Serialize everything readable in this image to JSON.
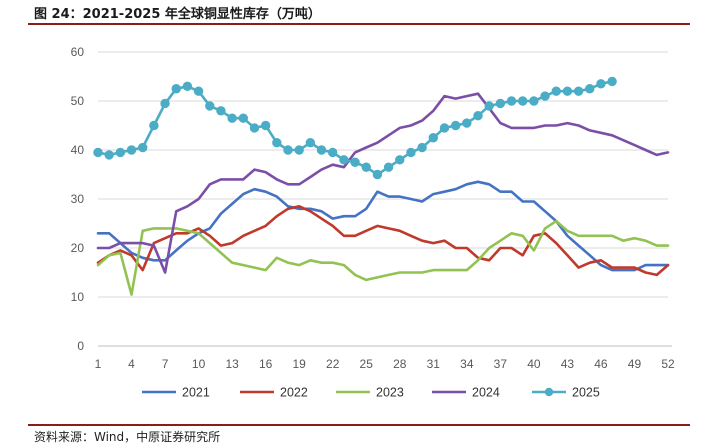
{
  "header": {
    "title": "图 24：2021-2025 年全球铜显性库存（万吨）"
  },
  "footer": {
    "source": "资料来源：Wind，中原证券研究所"
  },
  "chart_data": {
    "type": "line",
    "title": "图 24：2021-2025 年全球铜显性库存（万吨）",
    "xlabel": "",
    "ylabel": "",
    "xlim": [
      1,
      52
    ],
    "ylim": [
      0,
      60
    ],
    "yticks": [
      0,
      10,
      20,
      30,
      40,
      50,
      60
    ],
    "xticks": [
      1,
      4,
      7,
      10,
      13,
      16,
      19,
      22,
      25,
      28,
      31,
      34,
      37,
      40,
      43,
      46,
      49,
      52
    ],
    "grid": "horizontal",
    "legend": "bottom",
    "x": [
      1,
      2,
      3,
      4,
      5,
      6,
      7,
      8,
      9,
      10,
      11,
      12,
      13,
      14,
      15,
      16,
      17,
      18,
      19,
      20,
      21,
      22,
      23,
      24,
      25,
      26,
      27,
      28,
      29,
      30,
      31,
      32,
      33,
      34,
      35,
      36,
      37,
      38,
      39,
      40,
      41,
      42,
      43,
      44,
      45,
      46,
      47,
      48,
      49,
      50,
      51,
      52
    ],
    "series": [
      {
        "name": "2021",
        "color": "#4472C4",
        "marker": false,
        "values": [
          23,
          23,
          21,
          19,
          18,
          17.5,
          17.5,
          19.5,
          21.5,
          23,
          24,
          27,
          29,
          31,
          32,
          31.5,
          30.5,
          28.5,
          28,
          28,
          27.5,
          26,
          26.5,
          26.5,
          28,
          31.5,
          30.5,
          30.5,
          30,
          29.5,
          31,
          31.5,
          32,
          33,
          33.5,
          33,
          31.5,
          31.5,
          29.5,
          29.5,
          27.5,
          25.5,
          22.5,
          20.5,
          18.5,
          16.5,
          15.5,
          15.5,
          15.5,
          16.5,
          16.5,
          16.5
        ]
      },
      {
        "name": "2022",
        "color": "#C0392B",
        "marker": false,
        "values": [
          17,
          18.5,
          19.5,
          18.5,
          15.5,
          21,
          22,
          23,
          23,
          24,
          22.5,
          20.5,
          21,
          22.5,
          23.5,
          24.5,
          26.5,
          28,
          28.5,
          27.5,
          26,
          24.5,
          22.5,
          22.5,
          23.5,
          24.5,
          24,
          23.5,
          22.5,
          21.5,
          21,
          21.5,
          20,
          20,
          18,
          17.5,
          20,
          20,
          18.5,
          22.5,
          23,
          21,
          18.5,
          16,
          17,
          17.5,
          16,
          16,
          16,
          15,
          14.5,
          16.5
        ]
      },
      {
        "name": "2023",
        "color": "#92C352",
        "marker": false,
        "values": [
          16.5,
          18.5,
          19,
          10.5,
          23.5,
          24,
          24,
          24,
          23.5,
          23,
          21,
          19,
          17,
          16.5,
          16,
          15.5,
          18,
          17,
          16.5,
          17.5,
          17,
          17,
          16.5,
          14.5,
          13.5,
          14,
          14.5,
          15,
          15,
          15,
          15.5,
          15.5,
          15.5,
          15.5,
          17.5,
          20,
          21.5,
          23,
          22.5,
          19.5,
          24,
          25.5,
          23.5,
          22.5,
          22.5,
          22.5,
          22.5,
          21.5,
          22,
          21.5,
          20.5,
          20.5
        ]
      },
      {
        "name": "2024",
        "color": "#7B4FA8",
        "marker": false,
        "values": [
          20,
          20,
          21,
          21,
          21,
          20.5,
          15,
          27.5,
          28.5,
          30,
          33,
          34,
          34,
          34,
          36,
          35.5,
          34,
          33,
          33,
          34.5,
          36,
          37,
          36.5,
          39.5,
          40.5,
          41.5,
          43,
          44.5,
          45,
          46,
          48,
          51,
          50.5,
          51,
          51.5,
          48.5,
          45.5,
          44.5,
          44.5,
          44.5,
          45,
          45,
          45.5,
          45,
          44,
          43.5,
          43,
          42,
          41,
          40,
          39,
          39.5
        ]
      },
      {
        "name": "2025",
        "color": "#4BACC6",
        "marker": true,
        "values": [
          39.5,
          39,
          39.5,
          40,
          40.5,
          45,
          49.5,
          52.5,
          53,
          52,
          49,
          48,
          46.5,
          46.5,
          44.5,
          45,
          41.5,
          40,
          40,
          41.5,
          40,
          39.5,
          38,
          37.5,
          36.5,
          35,
          36.5,
          38,
          39.5,
          40.5,
          42.5,
          44.5,
          45,
          45.5,
          47,
          49,
          49.5,
          50,
          50,
          50,
          51,
          52,
          52,
          52,
          52.5,
          53.5,
          54,
          null,
          null,
          null,
          null,
          null
        ]
      }
    ]
  }
}
